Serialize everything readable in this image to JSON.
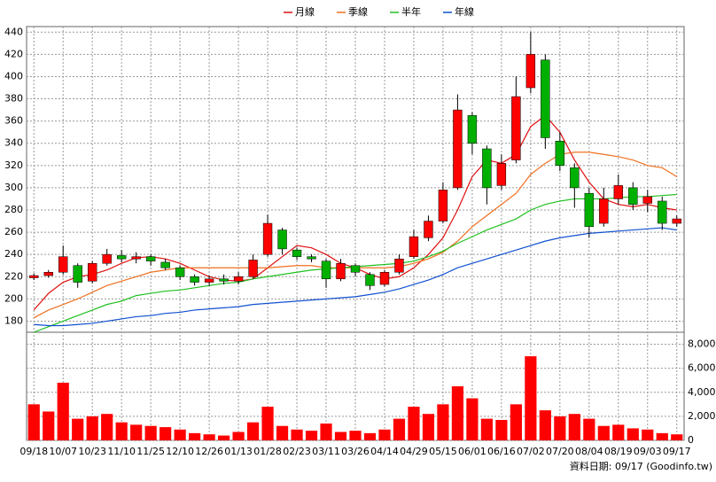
{
  "chart_data": [
    {
      "type": "candlestick",
      "open": [
        219,
        221,
        224,
        230,
        216,
        232,
        239,
        236,
        238,
        233,
        228,
        220,
        215,
        218,
        216,
        220,
        240,
        262,
        244,
        238,
        234,
        218,
        230,
        222,
        213,
        224,
        238,
        255,
        270,
        300,
        365,
        335,
        302,
        325,
        390,
        415,
        342,
        318,
        295,
        268,
        290,
        300,
        286,
        288,
        268
      ],
      "high": [
        223,
        226,
        248,
        232,
        234,
        245,
        244,
        242,
        240,
        236,
        230,
        222,
        221,
        222,
        224,
        240,
        276,
        264,
        246,
        240,
        236,
        236,
        232,
        224,
        226,
        240,
        262,
        275,
        305,
        384,
        368,
        338,
        330,
        400,
        440,
        420,
        350,
        322,
        300,
        300,
        312,
        305,
        298,
        292,
        275
      ],
      "low": [
        217,
        219,
        222,
        210,
        214,
        230,
        233,
        232,
        230,
        226,
        217,
        212,
        212,
        213,
        213,
        218,
        238,
        240,
        235,
        233,
        210,
        216,
        220,
        208,
        211,
        222,
        236,
        252,
        268,
        298,
        330,
        285,
        298,
        322,
        385,
        335,
        315,
        282,
        255,
        265,
        285,
        280,
        278,
        262,
        265
      ],
      "close": [
        221,
        224,
        238,
        215,
        232,
        240,
        236,
        238,
        234,
        228,
        220,
        215,
        218,
        216,
        220,
        235,
        268,
        245,
        238,
        236,
        218,
        232,
        224,
        212,
        224,
        236,
        256,
        270,
        298,
        370,
        340,
        300,
        322,
        382,
        420,
        345,
        320,
        300,
        265,
        290,
        302,
        285,
        292,
        268,
        272
      ],
      "up_color": "#ff0000",
      "down_color": "#00b000",
      "series": [
        {
          "name": "月線",
          "color": "#e01010",
          "values": [
            190,
            205,
            215,
            220,
            222,
            226,
            232,
            237,
            238,
            236,
            232,
            226,
            220,
            217,
            216,
            218,
            228,
            238,
            248,
            246,
            240,
            232,
            228,
            222,
            218,
            220,
            228,
            240,
            255,
            280,
            310,
            325,
            322,
            330,
            355,
            365,
            350,
            325,
            305,
            290,
            285,
            283,
            285,
            282,
            280
          ]
        },
        {
          "name": "季線",
          "color": "#f07020",
          "values": [
            183,
            190,
            195,
            200,
            206,
            212,
            216,
            220,
            224,
            226,
            228,
            228,
            228,
            228,
            228,
            228,
            228,
            229,
            230,
            230,
            228,
            228,
            228,
            228,
            228,
            229,
            232,
            236,
            242,
            252,
            265,
            275,
            285,
            295,
            312,
            322,
            330,
            332,
            332,
            330,
            328,
            325,
            320,
            318,
            310
          ]
        },
        {
          "name": "半年",
          "color": "#20c020",
          "values": [
            170,
            175,
            180,
            185,
            190,
            195,
            198,
            203,
            205,
            207,
            208,
            210,
            212,
            214,
            215,
            218,
            220,
            222,
            224,
            226,
            227,
            228,
            229,
            230,
            231,
            232,
            234,
            238,
            243,
            250,
            256,
            262,
            267,
            272,
            280,
            285,
            288,
            290,
            290,
            290,
            291,
            292,
            292,
            293,
            294
          ]
        },
        {
          "name": "年線",
          "color": "#1050d0",
          "values": [
            177,
            176,
            176,
            177,
            178,
            180,
            182,
            184,
            185,
            187,
            188,
            190,
            191,
            192,
            193,
            195,
            196,
            197,
            198,
            199,
            200,
            201,
            202,
            204,
            206,
            209,
            213,
            217,
            222,
            228,
            232,
            236,
            240,
            244,
            248,
            252,
            255,
            257,
            259,
            260,
            261,
            262,
            263,
            264,
            262
          ]
        }
      ],
      "ylim": [
        170,
        445
      ],
      "yticks": [
        180,
        200,
        220,
        240,
        260,
        280,
        300,
        320,
        340,
        360,
        380,
        400,
        420,
        440
      ],
      "grid": true
    },
    {
      "type": "bar",
      "categories": [
        "09/18",
        null,
        "10/07",
        null,
        "10/23",
        null,
        "11/10",
        null,
        "11/25",
        null,
        "12/10",
        null,
        "12/26",
        null,
        "01/13",
        null,
        "01/28",
        null,
        "02/23",
        null,
        "03/11",
        null,
        "03/26",
        null,
        "04/14",
        null,
        "04/29",
        null,
        "05/15",
        null,
        "06/01",
        null,
        "06/16",
        null,
        "07/02",
        null,
        "07/20",
        null,
        "08/04",
        null,
        "08/19",
        null,
        "09/03",
        null,
        "09/17"
      ],
      "values": [
        3000,
        2400,
        4800,
        1800,
        2000,
        2200,
        1500,
        1300,
        1200,
        1100,
        900,
        600,
        500,
        400,
        700,
        1500,
        2800,
        1200,
        900,
        800,
        1400,
        700,
        800,
        600,
        900,
        1800,
        2800,
        2200,
        3000,
        4500,
        3500,
        1800,
        1700,
        3000,
        7000,
        2500,
        2000,
        2200,
        1800,
        1200,
        1300,
        1000,
        900,
        600,
        500
      ],
      "color": "#ff0000",
      "ylim": [
        0,
        9000
      ],
      "yticks": [
        0,
        {
          "value": 2000,
          "label": "2,000"
        },
        {
          "value": 4000,
          "label": "4,000"
        },
        {
          "value": 6000,
          "label": "6,000"
        },
        {
          "value": 8000,
          "label": "8,000"
        }
      ],
      "grid": true,
      "annotation": "資料日期: 09/17 (Goodinfo.tw)"
    }
  ]
}
